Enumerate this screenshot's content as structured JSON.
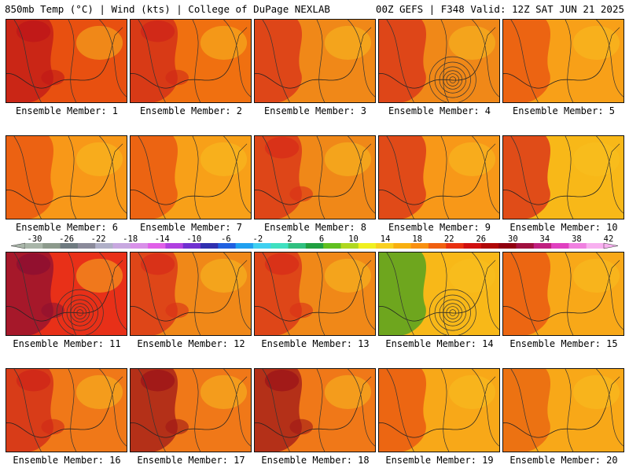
{
  "header": {
    "left": "850mb Temp (°C) | Wind (kts) | College of DuPage NEXLAB",
    "right": "00Z GEFS | F348 Valid: 12Z SAT JUN 21 2025"
  },
  "colorbar": {
    "labels": [
      "-30",
      "-26",
      "-22",
      "-18",
      "-14",
      "-10",
      "-6",
      "-2",
      "2",
      "6",
      "10",
      "14",
      "18",
      "22",
      "26",
      "30",
      "34",
      "38",
      "42"
    ],
    "colors": [
      "#a8b5a8",
      "#8c9a8c",
      "#6e7a80",
      "#8a8a9a",
      "#b0b0c8",
      "#c8a8e0",
      "#d890e8",
      "#e060e8",
      "#b040e0",
      "#7030d0",
      "#3030b0",
      "#2060e0",
      "#20a0f0",
      "#40d0f0",
      "#40e0c0",
      "#30c080",
      "#20a040",
      "#60c020",
      "#b0d820",
      "#f0f020",
      "#f8d020",
      "#f8b010",
      "#f89010",
      "#f06010",
      "#e83010",
      "#d01010",
      "#b00808",
      "#900010",
      "#a01040",
      "#c02080",
      "#e040c0",
      "#f080e0",
      "#f8b0f0"
    ]
  },
  "panels": [
    {
      "label": "Ensemble Member: 1",
      "base": "#e85010",
      "hot": "#c01818",
      "spots": 2
    },
    {
      "label": "Ensemble Member: 2",
      "base": "#f07010",
      "hot": "#d02818",
      "spots": 2
    },
    {
      "label": "Ensemble Member: 3",
      "base": "#f08818",
      "hot": "#d83018",
      "spots": 1
    },
    {
      "label": "Ensemble Member: 4",
      "base": "#f08818",
      "hot": "#d83018",
      "spots": 1,
      "cyclone": true
    },
    {
      "label": "Ensemble Member: 5",
      "base": "#f8a018",
      "hot": "#e85010",
      "spots": 1
    },
    {
      "label": "Ensemble Member: 6",
      "base": "#f89818",
      "hot": "#e85010",
      "spots": 1
    },
    {
      "label": "Ensemble Member: 7",
      "base": "#f8a018",
      "hot": "#e85010",
      "spots": 1
    },
    {
      "label": "Ensemble Member: 8",
      "base": "#f08818",
      "hot": "#d83018",
      "spots": 2
    },
    {
      "label": "Ensemble Member: 9",
      "base": "#f89818",
      "hot": "#d83018",
      "spots": 1
    },
    {
      "label": "Ensemble Member: 10",
      "base": "#f8b818",
      "hot": "#d82818",
      "spots": 1
    },
    {
      "label": "Ensemble Member: 11",
      "base": "#e83018",
      "hot": "#901030",
      "spots": 2,
      "cyclone": true
    },
    {
      "label": "Ensemble Member: 12",
      "base": "#f08818",
      "hot": "#d83018",
      "spots": 2
    },
    {
      "label": "Ensemble Member: 13",
      "base": "#f08818",
      "hot": "#d83018",
      "spots": 2
    },
    {
      "label": "Ensemble Member: 14",
      "base": "#f8b818",
      "hot": "#40a020",
      "spots": 1,
      "cyclone": true
    },
    {
      "label": "Ensemble Member: 15",
      "base": "#f8a818",
      "hot": "#e85010",
      "spots": 1
    },
    {
      "label": "Ensemble Member: 16",
      "base": "#f07818",
      "hot": "#d02818",
      "spots": 2
    },
    {
      "label": "Ensemble Member: 17",
      "base": "#f07818",
      "hot": "#a01818",
      "spots": 2
    },
    {
      "label": "Ensemble Member: 18",
      "base": "#f07818",
      "hot": "#a01818",
      "spots": 2
    },
    {
      "label": "Ensemble Member: 19",
      "base": "#f8a818",
      "hot": "#e85010",
      "spots": 1
    },
    {
      "label": "Ensemble Member: 20",
      "base": "#f8a818",
      "hot": "#e86010",
      "spots": 1
    }
  ]
}
